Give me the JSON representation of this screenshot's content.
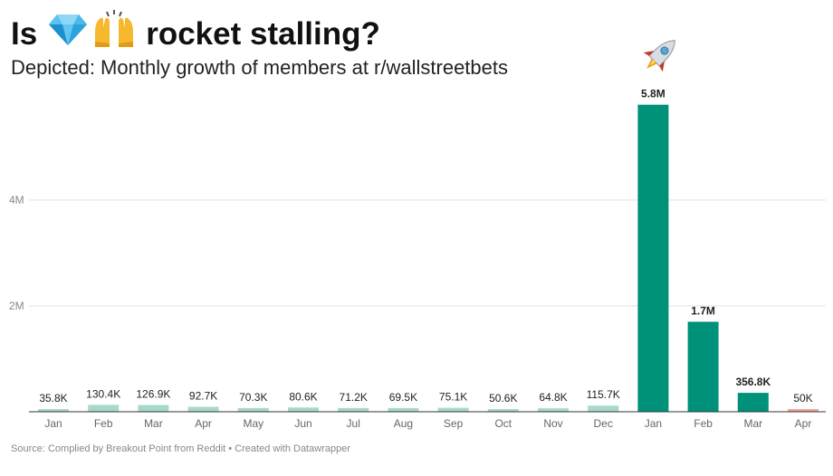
{
  "header": {
    "title_prefix": "Is",
    "title_suffix": "rocket stalling?",
    "title_icons": [
      "gem-icon",
      "raised-hands-icon"
    ],
    "subtitle": "Depicted: Monthly growth of members at r/wallstreetbets",
    "rocket_icon": "rocket-icon"
  },
  "footer": {
    "source": "Source: Complied by Breakout Point from Reddit • Created with Datawrapper"
  },
  "colors": {
    "bar_light": "#a8d8cc",
    "bar_dark": "#00917a",
    "bar_last": "#f2a59e",
    "grid": "#e2e2e2",
    "axis": "#333333"
  },
  "chart_data": {
    "type": "bar",
    "title": "Is 💎🙌 rocket stalling?",
    "subtitle": "Depicted: Monthly growth of members at r/wallstreetbets",
    "categories": [
      "Jan",
      "Feb",
      "Mar",
      "Apr",
      "May",
      "Jun",
      "Jul",
      "Aug",
      "Sep",
      "Oct",
      "Nov",
      "Dec",
      "Jan",
      "Feb",
      "Mar",
      "Apr"
    ],
    "values": [
      35800,
      130400,
      126900,
      92700,
      70300,
      80600,
      71200,
      69500,
      75100,
      50600,
      64800,
      115700,
      5800000,
      1700000,
      356800,
      50000
    ],
    "data_labels": [
      "35.8K",
      "130.4K",
      "126.9K",
      "92.7K",
      "70.3K",
      "80.6K",
      "71.2K",
      "69.5K",
      "75.1K",
      "50.6K",
      "64.8K",
      "115.7K",
      "5.8M",
      "1.7M",
      "356.8K",
      "50K"
    ],
    "bar_color_groups": [
      "light",
      "light",
      "light",
      "light",
      "light",
      "light",
      "light",
      "light",
      "light",
      "light",
      "light",
      "light",
      "dark",
      "dark",
      "dark",
      "last"
    ],
    "bold_labels": [
      false,
      false,
      false,
      false,
      false,
      false,
      false,
      false,
      false,
      false,
      false,
      false,
      true,
      true,
      true,
      false
    ],
    "yticks": [
      2000000,
      4000000
    ],
    "ytick_labels": [
      "2M",
      "4M"
    ],
    "ylim": [
      0,
      6000000
    ],
    "grid": true,
    "legend": "none",
    "xlabel": "",
    "ylabel": ""
  }
}
